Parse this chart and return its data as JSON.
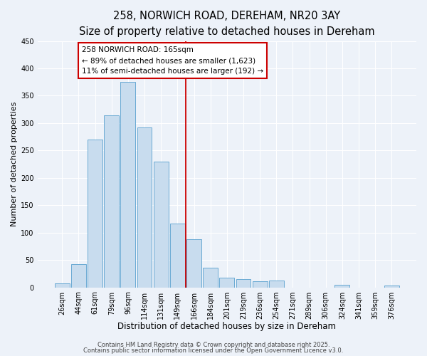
{
  "title": "258, NORWICH ROAD, DEREHAM, NR20 3AY",
  "subtitle": "Size of property relative to detached houses in Dereham",
  "xlabel": "Distribution of detached houses by size in Dereham",
  "ylabel": "Number of detached properties",
  "bar_labels": [
    "26sqm",
    "44sqm",
    "61sqm",
    "79sqm",
    "96sqm",
    "114sqm",
    "131sqm",
    "149sqm",
    "166sqm",
    "184sqm",
    "201sqm",
    "219sqm",
    "236sqm",
    "254sqm",
    "271sqm",
    "289sqm",
    "306sqm",
    "324sqm",
    "341sqm",
    "359sqm",
    "376sqm"
  ],
  "bar_values": [
    7,
    42,
    270,
    314,
    375,
    292,
    230,
    117,
    88,
    36,
    18,
    15,
    11,
    12,
    0,
    0,
    0,
    5,
    0,
    0,
    3
  ],
  "bar_color": "#c8dcee",
  "bar_edge_color": "#6aaad4",
  "ylim": [
    0,
    450
  ],
  "yticks": [
    0,
    50,
    100,
    150,
    200,
    250,
    300,
    350,
    400,
    450
  ],
  "vline_x_index": 8,
  "vline_color": "#cc0000",
  "annotation_title": "258 NORWICH ROAD: 165sqm",
  "annotation_line1": "← 89% of detached houses are smaller (1,623)",
  "annotation_line2": "11% of semi-detached houses are larger (192) →",
  "annotation_box_facecolor": "#ffffff",
  "annotation_box_edgecolor": "#cc0000",
  "footer1": "Contains HM Land Registry data © Crown copyright and database right 2025.",
  "footer2": "Contains public sector information licensed under the Open Government Licence v3.0.",
  "background_color": "#edf2f9",
  "grid_color": "#ffffff",
  "title_fontsize": 10.5,
  "subtitle_fontsize": 9.5,
  "xlabel_fontsize": 8.5,
  "ylabel_fontsize": 8,
  "tick_fontsize": 7,
  "annotation_fontsize": 7.5,
  "footer_fontsize": 6
}
